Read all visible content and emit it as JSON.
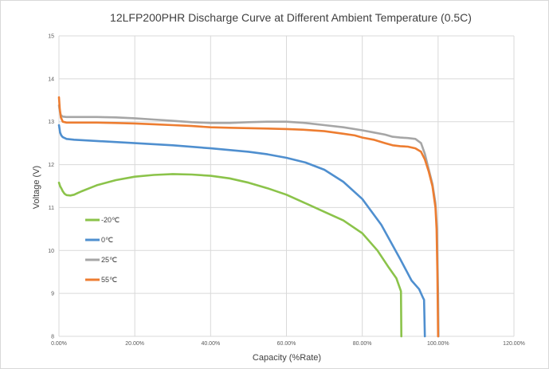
{
  "chart_data": {
    "type": "line",
    "title": "12LFP200PHR Discharge Curve at Different Ambient Temperature (0.5C)",
    "xlabel": "Capacity (%Rate)",
    "ylabel": "Voltage (V)",
    "xlim": [
      0,
      120
    ],
    "ylim": [
      8,
      15
    ],
    "x_ticks": [
      0,
      20,
      40,
      60,
      80,
      100,
      120
    ],
    "x_tick_labels": [
      "0.00%",
      "20.00%",
      "40.00%",
      "60.00%",
      "80.00%",
      "100.00%",
      "120.00%"
    ],
    "y_ticks": [
      8,
      9,
      10,
      11,
      12,
      13,
      14,
      15
    ],
    "y_tick_labels": [
      "8",
      "9",
      "10",
      "11",
      "12",
      "13",
      "14",
      "15"
    ],
    "grid": "vertical-and-horizontal",
    "legend_position": "left-inside",
    "series": [
      {
        "name": "-20℃",
        "color": "#8bc34a",
        "x": [
          0,
          0.3,
          0.6,
          1,
          1.5,
          2,
          3,
          4,
          5,
          6,
          8,
          10,
          15,
          20,
          25,
          30,
          35,
          40,
          45,
          50,
          55,
          60,
          65,
          70,
          75,
          80,
          84,
          87,
          89,
          90,
          90.2,
          90.3
        ],
        "y": [
          11.58,
          11.5,
          11.45,
          11.38,
          11.32,
          11.29,
          11.28,
          11.3,
          11.34,
          11.38,
          11.45,
          11.52,
          11.64,
          11.72,
          11.76,
          11.78,
          11.77,
          11.74,
          11.68,
          11.58,
          11.45,
          11.3,
          11.1,
          10.9,
          10.7,
          10.4,
          10.0,
          9.6,
          9.35,
          9.1,
          9.05,
          8.0
        ]
      },
      {
        "name": "0℃",
        "color": "#4f8fcf",
        "x": [
          0,
          0.3,
          0.6,
          1,
          2,
          4,
          10,
          20,
          30,
          40,
          50,
          55,
          60,
          65,
          70,
          75,
          80,
          85,
          90,
          93,
          95,
          96,
          96.3,
          96.5
        ],
        "y": [
          12.92,
          12.75,
          12.68,
          12.64,
          12.6,
          12.58,
          12.55,
          12.5,
          12.45,
          12.38,
          12.3,
          12.24,
          12.16,
          12.05,
          11.88,
          11.6,
          11.2,
          10.6,
          9.8,
          9.3,
          9.1,
          8.9,
          8.85,
          8.0
        ]
      },
      {
        "name": "25℃",
        "color": "#a6a6a6",
        "x": [
          0,
          0.2,
          0.5,
          1,
          2,
          5,
          10,
          15,
          20,
          25,
          30,
          35,
          40,
          45,
          50,
          55,
          60,
          65,
          70,
          75,
          80,
          83,
          86,
          88,
          90,
          92,
          94,
          95.5,
          96.5,
          97.5,
          98.5,
          99.3,
          99.7,
          100,
          100.1
        ],
        "y": [
          13.38,
          13.25,
          13.15,
          13.12,
          13.11,
          13.11,
          13.11,
          13.1,
          13.08,
          13.05,
          13.02,
          12.99,
          12.97,
          12.97,
          12.99,
          13.0,
          13.0,
          12.97,
          12.92,
          12.87,
          12.8,
          12.75,
          12.7,
          12.65,
          12.63,
          12.62,
          12.6,
          12.5,
          12.25,
          11.9,
          11.55,
          11.1,
          10.5,
          9.0,
          8.0
        ]
      },
      {
        "name": "55℃",
        "color": "#ed7d31",
        "x": [
          0,
          0.2,
          0.5,
          1,
          2,
          5,
          10,
          15,
          20,
          25,
          30,
          35,
          40,
          45,
          50,
          55,
          60,
          65,
          70,
          75,
          78,
          80,
          83,
          86,
          88,
          90,
          92,
          94,
          95.5,
          96.5,
          97.5,
          98.5,
          99.3,
          99.6,
          99.8,
          100
        ],
        "y": [
          13.57,
          13.3,
          13.1,
          13.0,
          12.98,
          12.98,
          12.98,
          12.97,
          12.96,
          12.94,
          12.92,
          12.9,
          12.87,
          12.86,
          12.85,
          12.84,
          12.83,
          12.81,
          12.78,
          12.72,
          12.68,
          12.63,
          12.58,
          12.5,
          12.45,
          12.43,
          12.42,
          12.38,
          12.3,
          12.12,
          11.85,
          11.5,
          11.0,
          10.5,
          9.5,
          8.0
        ]
      }
    ]
  }
}
